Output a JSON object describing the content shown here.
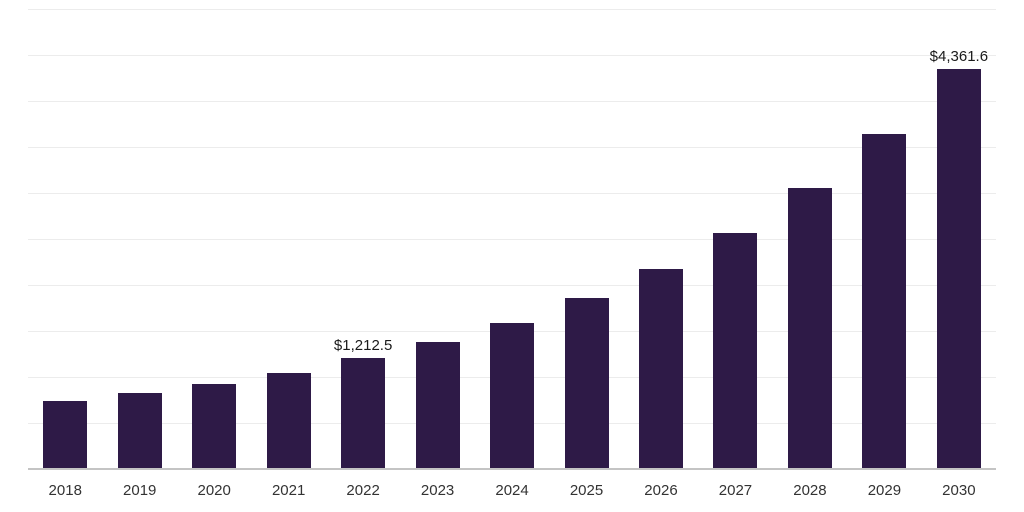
{
  "chart_data": {
    "type": "bar",
    "categories": [
      "2018",
      "2019",
      "2020",
      "2021",
      "2022",
      "2023",
      "2024",
      "2025",
      "2026",
      "2027",
      "2028",
      "2029",
      "2030"
    ],
    "values": [
      750,
      840,
      935,
      1050,
      1212.5,
      1390,
      1600,
      1870,
      2190,
      2580,
      3060,
      3650,
      4361.6
    ],
    "data_labels": [
      {
        "index": 4,
        "text": "$1,212.5"
      },
      {
        "index": 12,
        "text": "$4,361.6"
      }
    ],
    "title": "",
    "xlabel": "",
    "ylabel": "",
    "ylim": [
      0,
      5000
    ],
    "gridline_step": 500,
    "grid": "horizontal",
    "legend": "none",
    "bar_color": "#2e1a47",
    "gridline_color": "#ececec",
    "axis_line_color": "#c4c4c4",
    "tick_label_color": "#333333",
    "data_label_color": "#1a1a1a"
  }
}
